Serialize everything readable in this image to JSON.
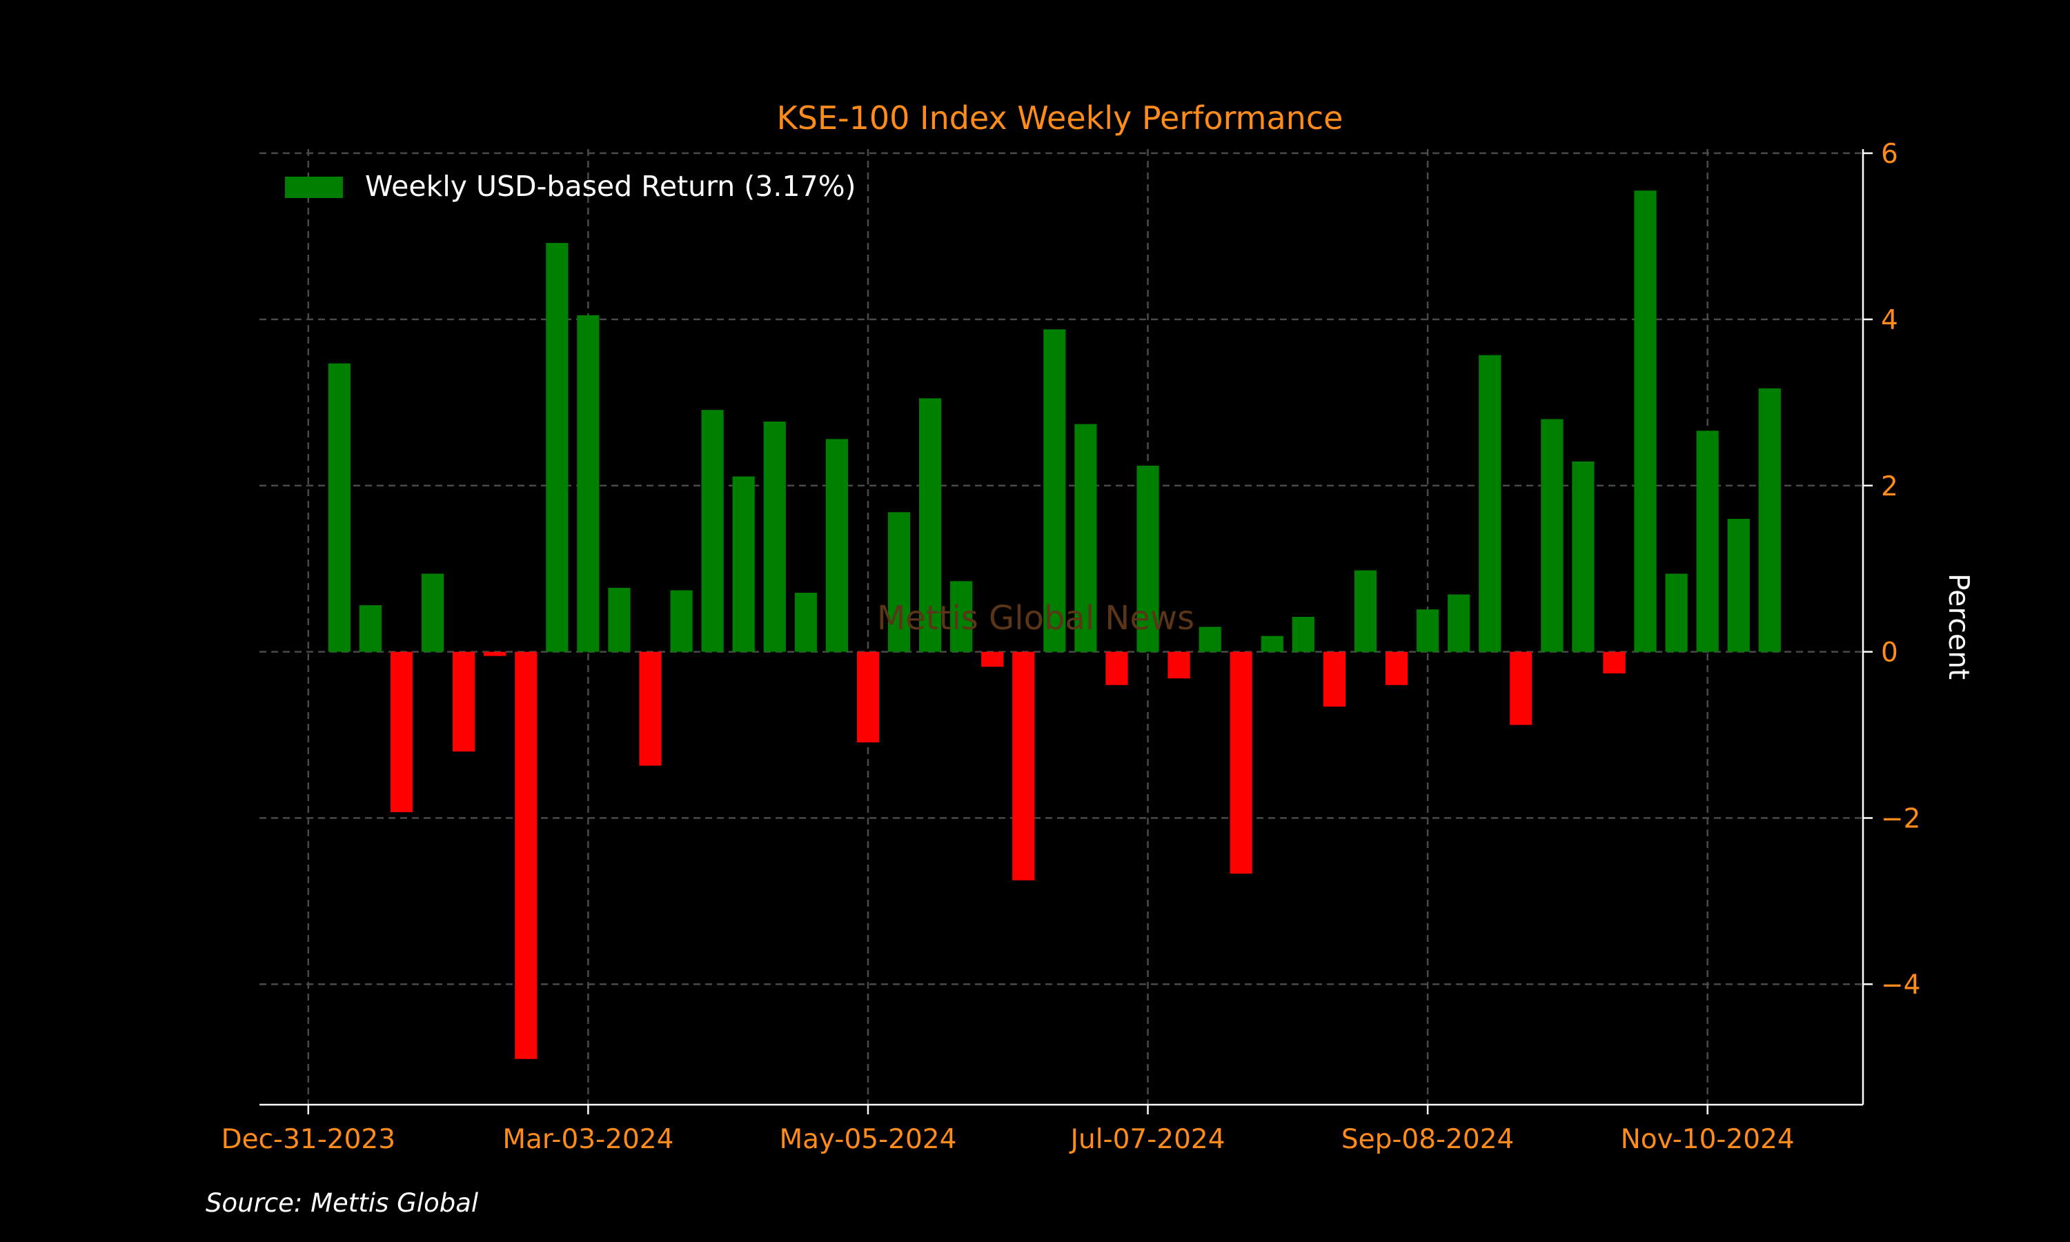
{
  "chart_data": {
    "type": "bar",
    "title": "KSE-100 Index Weekly Performance",
    "ylabel": "Percent",
    "xlabel": "",
    "y_axis_side": "right",
    "ylim": [
      -5.45,
      6.05
    ],
    "yticks": [
      -4,
      -2,
      0,
      2,
      4,
      6
    ],
    "ytick_labels": [
      "−4",
      "−2",
      "0",
      "2",
      "4",
      "6"
    ],
    "xlim": [
      "2023-12-20",
      "2024-12-15"
    ],
    "xticks": [
      "2023-12-31",
      "2024-03-03",
      "2024-05-05",
      "2024-07-07",
      "2024-09-08",
      "2024-11-10"
    ],
    "xtick_labels": [
      "Dec-31-2023",
      "Mar-03-2024",
      "May-05-2024",
      "Jul-07-2024",
      "Sep-08-2024",
      "Nov-10-2024"
    ],
    "first_week": "2024-01-07",
    "grid": true,
    "legend": {
      "label": "Weekly USD-based Return (3.17%)",
      "position": "top-left",
      "color": "#008000"
    },
    "colors": {
      "positive": "#008000",
      "negative": "#ff0000",
      "text_accent": "#ff8c1a",
      "background": "#000000"
    },
    "series": [
      {
        "name": "Weekly USD-based Return (3.17%)",
        "values": [
          3.47,
          0.56,
          -1.93,
          0.94,
          -1.2,
          -0.05,
          -4.9,
          4.92,
          4.05,
          0.77,
          -1.37,
          0.74,
          2.91,
          2.11,
          2.77,
          0.71,
          2.56,
          -1.09,
          1.68,
          3.05,
          0.85,
          -0.18,
          -2.75,
          3.88,
          2.74,
          -0.4,
          2.24,
          -0.32,
          0.3,
          -2.67,
          0.19,
          0.42,
          -0.66,
          0.98,
          -0.4,
          0.51,
          0.69,
          3.57,
          -0.88,
          2.8,
          2.29,
          -0.26,
          5.55,
          0.94,
          2.66,
          1.6,
          3.17
        ]
      }
    ]
  },
  "watermark": "Mettis Global News",
  "source": "Source: Mettis Global"
}
